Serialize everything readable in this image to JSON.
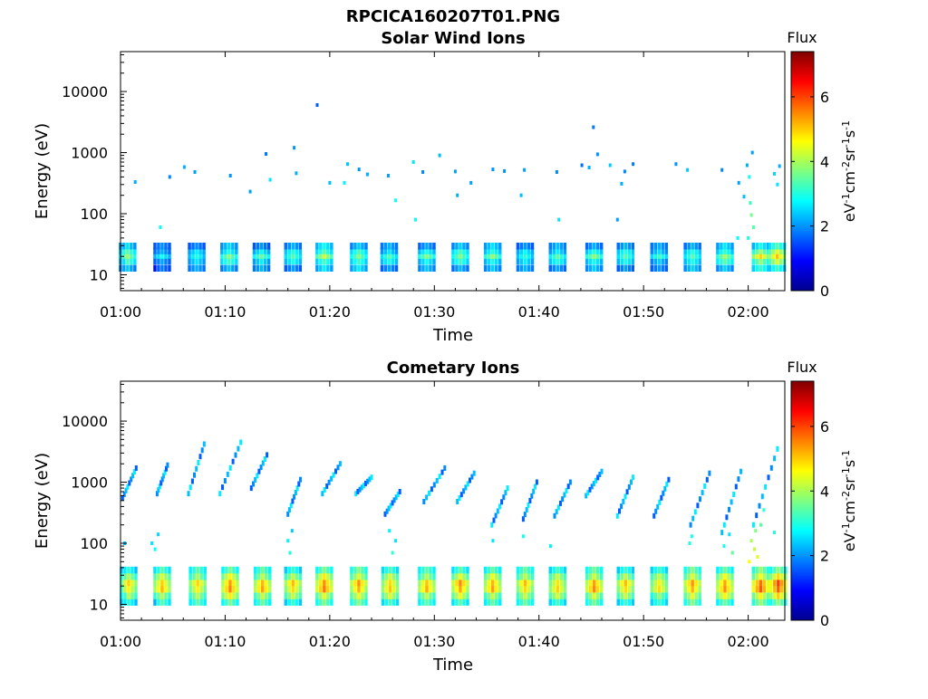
{
  "figure": {
    "title": "RPCICA160207T01.PNG"
  },
  "chart_data": [
    {
      "type": "heatmap",
      "title": "Solar Wind Ions",
      "xlabel": "Time",
      "ylabel": "Energy (eV)",
      "x_ticks": [
        "01:00",
        "01:10",
        "01:20",
        "01:30",
        "01:40",
        "01:50",
        "02:00"
      ],
      "x_range_minutes": [
        0,
        63.5
      ],
      "y_scale": "log",
      "y_ticks": [
        "10",
        "100",
        "1000",
        "10000"
      ],
      "y_range": [
        5.5,
        45000
      ],
      "colorbar": {
        "title": "Flux",
        "label": "eV-1cm-2sr-1s-1",
        "ticks": [
          "0",
          "2",
          "4",
          "6"
        ],
        "range": [
          0,
          7.4
        ]
      },
      "bands": {
        "energy_ev": [
          13,
          17,
          21,
          25,
          30
        ],
        "times_min": [
          0.7,
          4,
          7.3,
          10.4,
          13.5,
          16.5,
          19.5,
          22.8,
          25.7,
          29.3,
          32.5,
          35.6,
          38.7,
          41.8,
          45.3,
          48.3,
          51.5,
          54.7,
          57.8,
          61.2,
          62.8
        ],
        "levels": [
          3.8,
          2.6,
          3.0,
          3.6,
          3.2,
          3.3,
          4.0,
          3.7,
          3.2,
          3.4,
          3.6,
          3.6,
          3.1,
          3.3,
          3.5,
          3.3,
          3.0,
          3.4,
          3.8,
          4.6,
          5.0
        ]
      },
      "sparse_points": [
        {
          "t": 1.4,
          "e": 330,
          "v": 2.2
        },
        {
          "t": 3.8,
          "e": 60,
          "v": 2.8
        },
        {
          "t": 4.7,
          "e": 400,
          "v": 1.9
        },
        {
          "t": 6.1,
          "e": 580,
          "v": 2.2
        },
        {
          "t": 7.1,
          "e": 480,
          "v": 2.1
        },
        {
          "t": 10.5,
          "e": 420,
          "v": 2.0
        },
        {
          "t": 12.4,
          "e": 230,
          "v": 2.1
        },
        {
          "t": 13.9,
          "e": 950,
          "v": 1.8
        },
        {
          "t": 14.3,
          "e": 360,
          "v": 2.6
        },
        {
          "t": 16.6,
          "e": 1200,
          "v": 2.0
        },
        {
          "t": 16.8,
          "e": 460,
          "v": 2.2
        },
        {
          "t": 18.8,
          "e": 6000,
          "v": 1.6
        },
        {
          "t": 20.0,
          "e": 320,
          "v": 2.3
        },
        {
          "t": 21.4,
          "e": 320,
          "v": 2.7
        },
        {
          "t": 21.7,
          "e": 650,
          "v": 2.4
        },
        {
          "t": 22.8,
          "e": 530,
          "v": 2.0
        },
        {
          "t": 23.6,
          "e": 440,
          "v": 2.2
        },
        {
          "t": 25.6,
          "e": 420,
          "v": 2.1
        },
        {
          "t": 26.3,
          "e": 165,
          "v": 2.8
        },
        {
          "t": 28.0,
          "e": 700,
          "v": 2.6
        },
        {
          "t": 28.2,
          "e": 80,
          "v": 2.8
        },
        {
          "t": 28.9,
          "e": 480,
          "v": 1.9
        },
        {
          "t": 30.5,
          "e": 900,
          "v": 2.3
        },
        {
          "t": 32.0,
          "e": 490,
          "v": 2.1
        },
        {
          "t": 32.2,
          "e": 200,
          "v": 2.2
        },
        {
          "t": 33.5,
          "e": 320,
          "v": 2.1
        },
        {
          "t": 35.6,
          "e": 530,
          "v": 2.0
        },
        {
          "t": 36.7,
          "e": 500,
          "v": 2.0
        },
        {
          "t": 38.3,
          "e": 200,
          "v": 2.3
        },
        {
          "t": 38.6,
          "e": 520,
          "v": 2.1
        },
        {
          "t": 41.7,
          "e": 480,
          "v": 1.9
        },
        {
          "t": 41.9,
          "e": 80,
          "v": 2.6
        },
        {
          "t": 44.1,
          "e": 620,
          "v": 1.7
        },
        {
          "t": 44.8,
          "e": 570,
          "v": 2.2
        },
        {
          "t": 45.2,
          "e": 2600,
          "v": 1.8
        },
        {
          "t": 45.6,
          "e": 940,
          "v": 2.0
        },
        {
          "t": 46.8,
          "e": 620,
          "v": 2.4
        },
        {
          "t": 47.5,
          "e": 80,
          "v": 2.1
        },
        {
          "t": 47.9,
          "e": 310,
          "v": 2.2
        },
        {
          "t": 48.2,
          "e": 490,
          "v": 1.9
        },
        {
          "t": 49.0,
          "e": 650,
          "v": 1.8
        },
        {
          "t": 53.1,
          "e": 650,
          "v": 2.0
        },
        {
          "t": 54.2,
          "e": 520,
          "v": 2.4
        },
        {
          "t": 57.5,
          "e": 520,
          "v": 1.9
        },
        {
          "t": 59.1,
          "e": 320,
          "v": 2.1
        },
        {
          "t": 59.6,
          "e": 190,
          "v": 2.3
        },
        {
          "t": 59.9,
          "e": 620,
          "v": 2.2
        },
        {
          "t": 60.1,
          "e": 400,
          "v": 2.9
        },
        {
          "t": 60.2,
          "e": 150,
          "v": 3.2
        },
        {
          "t": 60.3,
          "e": 95,
          "v": 3.6
        },
        {
          "t": 60.5,
          "e": 60,
          "v": 3.4
        },
        {
          "t": 60.4,
          "e": 1000,
          "v": 2.1
        },
        {
          "t": 60.0,
          "e": 40,
          "v": 3.0
        },
        {
          "t": 59.0,
          "e": 40,
          "v": 2.8
        },
        {
          "t": 62.5,
          "e": 450,
          "v": 2.5
        },
        {
          "t": 63.0,
          "e": 600,
          "v": 2.2
        },
        {
          "t": 62.8,
          "e": 300,
          "v": 2.6
        }
      ],
      "streaks": []
    },
    {
      "type": "heatmap",
      "title": "Cometary Ions",
      "xlabel": "Time",
      "ylabel": "Energy (eV)",
      "x_ticks": [
        "01:00",
        "01:10",
        "01:20",
        "01:30",
        "01:40",
        "01:50",
        "02:00"
      ],
      "x_range_minutes": [
        0,
        63.5
      ],
      "y_scale": "log",
      "y_ticks": [
        "10",
        "100",
        "1000",
        "10000"
      ],
      "y_range": [
        5.5,
        45000
      ],
      "colorbar": {
        "title": "Flux",
        "label": "eV-1cm-2sr-1s-1",
        "ticks": [
          "0",
          "2",
          "4",
          "6"
        ],
        "range": [
          0,
          7.4
        ]
      },
      "bands": {
        "energy_ev": [
          11,
          14,
          18,
          23,
          29,
          37
        ],
        "times_min": [
          0.8,
          4,
          7.4,
          10.5,
          13.6,
          16.5,
          19.5,
          22.8,
          25.8,
          29.3,
          32.5,
          35.6,
          38.7,
          41.8,
          45.3,
          48.3,
          51.5,
          54.7,
          57.8,
          61.2,
          62.9
        ],
        "levels": [
          5.0,
          5.3,
          5.1,
          5.8,
          5.4,
          5.2,
          5.8,
          5.6,
          5.3,
          5.3,
          5.6,
          5.5,
          5.3,
          5.2,
          5.6,
          5.2,
          5.0,
          5.6,
          5.7,
          6.0,
          6.2
        ]
      },
      "sparse_points": [
        {
          "t": 3.0,
          "e": 100,
          "v": 2.6
        },
        {
          "t": 3.3,
          "e": 80,
          "v": 2.8
        },
        {
          "t": 3.6,
          "e": 140,
          "v": 2.5
        },
        {
          "t": 0.4,
          "e": 100,
          "v": 2.3
        },
        {
          "t": 16.0,
          "e": 110,
          "v": 2.7
        },
        {
          "t": 16.2,
          "e": 70,
          "v": 3.0
        },
        {
          "t": 16.4,
          "e": 160,
          "v": 2.4
        },
        {
          "t": 25.7,
          "e": 160,
          "v": 2.7
        },
        {
          "t": 26.0,
          "e": 70,
          "v": 3.1
        },
        {
          "t": 26.3,
          "e": 110,
          "v": 2.6
        },
        {
          "t": 35.6,
          "e": 110,
          "v": 2.6
        },
        {
          "t": 38.5,
          "e": 130,
          "v": 2.9
        },
        {
          "t": 41.1,
          "e": 90,
          "v": 2.7
        },
        {
          "t": 54.6,
          "e": 130,
          "v": 2.9
        },
        {
          "t": 54.4,
          "e": 100,
          "v": 3.0
        },
        {
          "t": 57.7,
          "e": 90,
          "v": 2.9
        },
        {
          "t": 58.2,
          "e": 140,
          "v": 2.6
        },
        {
          "t": 60.3,
          "e": 110,
          "v": 4.0
        },
        {
          "t": 60.6,
          "e": 80,
          "v": 4.2
        },
        {
          "t": 60.9,
          "e": 60,
          "v": 4.4
        },
        {
          "t": 60.7,
          "e": 160,
          "v": 3.7
        },
        {
          "t": 61.2,
          "e": 200,
          "v": 3.4
        },
        {
          "t": 60.1,
          "e": 50,
          "v": 4.6
        },
        {
          "t": 61.5,
          "e": 350,
          "v": 3.1
        },
        {
          "t": 58.5,
          "e": 70,
          "v": 3.5
        },
        {
          "t": 62.5,
          "e": 150,
          "v": 3.0
        }
      ],
      "streaks": [
        {
          "t0": 0.2,
          "t1": 1.5,
          "e0": 550,
          "e1": 1700
        },
        {
          "t0": 3.5,
          "t1": 4.5,
          "e0": 650,
          "e1": 1900
        },
        {
          "t0": 6.5,
          "t1": 8.0,
          "e0": 650,
          "e1": 4200
        },
        {
          "t0": 9.5,
          "t1": 11.5,
          "e0": 650,
          "e1": 4500
        },
        {
          "t0": 12.5,
          "t1": 14.0,
          "e0": 800,
          "e1": 2800
        },
        {
          "t0": 16.0,
          "t1": 17.2,
          "e0": 300,
          "e1": 1100
        },
        {
          "t0": 19.3,
          "t1": 21.0,
          "e0": 650,
          "e1": 2000
        },
        {
          "t0": 22.5,
          "t1": 24.0,
          "e0": 650,
          "e1": 1200
        },
        {
          "t0": 25.3,
          "t1": 26.7,
          "e0": 300,
          "e1": 700
        },
        {
          "t0": 29.0,
          "t1": 31.0,
          "e0": 480,
          "e1": 1700
        },
        {
          "t0": 32.2,
          "t1": 33.8,
          "e0": 480,
          "e1": 1400
        },
        {
          "t0": 35.5,
          "t1": 37.0,
          "e0": 200,
          "e1": 800
        },
        {
          "t0": 38.5,
          "t1": 39.8,
          "e0": 250,
          "e1": 1000
        },
        {
          "t0": 41.5,
          "t1": 43.0,
          "e0": 280,
          "e1": 1000
        },
        {
          "t0": 44.5,
          "t1": 46.0,
          "e0": 600,
          "e1": 1500
        },
        {
          "t0": 47.5,
          "t1": 49.0,
          "e0": 280,
          "e1": 1200
        },
        {
          "t0": 51.0,
          "t1": 52.4,
          "e0": 280,
          "e1": 1100
        },
        {
          "t0": 54.5,
          "t1": 56.3,
          "e0": 200,
          "e1": 1400
        },
        {
          "t0": 57.5,
          "t1": 59.3,
          "e0": 150,
          "e1": 1500
        },
        {
          "t0": 60.5,
          "t1": 62.8,
          "e0": 200,
          "e1": 3500
        }
      ]
    }
  ]
}
